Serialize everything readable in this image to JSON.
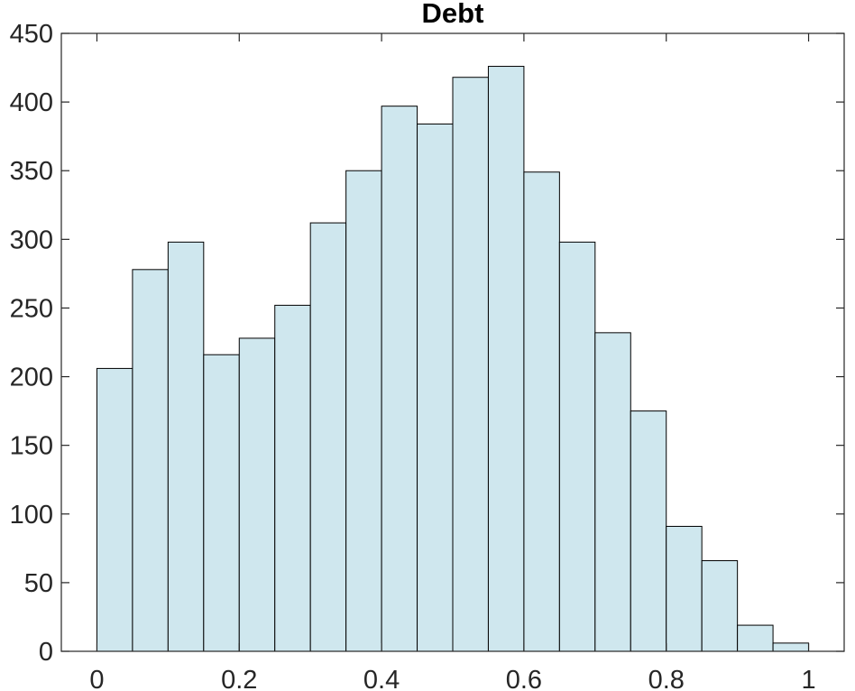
{
  "chart_data": {
    "type": "bar",
    "title": "Debt",
    "xlabel": "",
    "ylabel": "",
    "bin_edges": [
      0,
      0.05,
      0.1,
      0.15,
      0.2,
      0.25,
      0.3,
      0.35,
      0.4,
      0.45,
      0.5,
      0.55,
      0.6,
      0.65,
      0.7,
      0.75,
      0.8,
      0.85,
      0.9,
      0.95,
      1
    ],
    "values": [
      206,
      278,
      298,
      216,
      228,
      252,
      312,
      350,
      397,
      384,
      418,
      426,
      349,
      298,
      232,
      175,
      91,
      66,
      19,
      6
    ],
    "xlim": [
      -0.05,
      1.05
    ],
    "ylim": [
      0,
      450
    ],
    "x_ticks": [
      0,
      0.2,
      0.4,
      0.6,
      0.8,
      1
    ],
    "x_tick_labels": [
      "0",
      "0.2",
      "0.4",
      "0.6",
      "0.8",
      "1"
    ],
    "y_ticks": [
      0,
      50,
      100,
      150,
      200,
      250,
      300,
      350,
      400,
      450
    ],
    "y_tick_labels": [
      "0",
      "50",
      "100",
      "150",
      "200",
      "250",
      "300",
      "350",
      "400",
      "450"
    ],
    "grid": false,
    "bar_color": "#cfe7ee",
    "edge_color": "#000000"
  }
}
